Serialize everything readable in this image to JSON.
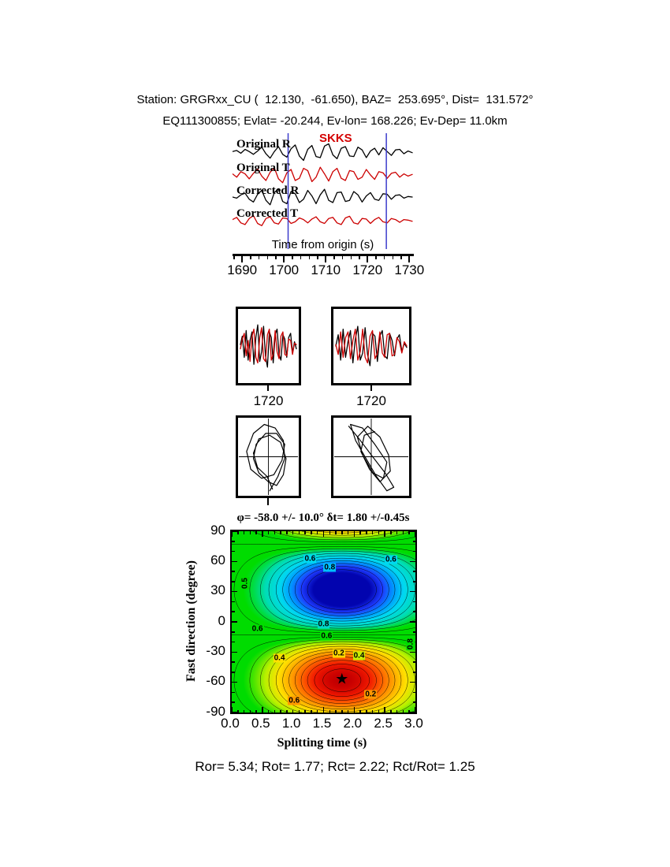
{
  "header": {
    "line1": "Station: GRGRxx_CU (  12.130,  -61.650), BAZ=  253.695°, Dist=  131.572°",
    "line2": "EQ111300855; Evlat= -20.244, Ev-lon= 168.226; Ev-Dep= 11.0km"
  },
  "footer": {
    "stats": "Ror= 5.34; Rot= 1.77; Rct= 2.22; Rct/Rot= 1.25"
  },
  "chart_data": [
    {
      "id": "seismograms",
      "type": "line",
      "phase_label": "SKKS",
      "xlabel": "Time from origin (s)",
      "xlim": [
        1687.7,
        1730.7
      ],
      "xticks": [
        1690,
        1700,
        1710,
        1720,
        1730
      ],
      "minor_tick_step": 2,
      "window_markers": [
        1701.0,
        1724.5
      ],
      "window_color": "#3c3ccc",
      "traces": [
        {
          "name": "Original R",
          "color": "#000000",
          "y": [
            0.05,
            0.15,
            -0.1,
            0.25,
            0.05,
            -0.2,
            0.1,
            0.45,
            -0.15,
            -0.55,
            0.05,
            0.5,
            -0.2,
            -0.45,
            0.3,
            0.65,
            -0.35,
            -0.75,
            0.25,
            0.6,
            -0.4,
            -0.5,
            0.55,
            0.75,
            -0.25,
            -0.6,
            0.35,
            0.5,
            -0.35,
            -0.4,
            0.45,
            0.2,
            -0.5,
            0.1,
            0.35,
            -0.25,
            0.4,
            0.05,
            -0.3,
            0.2,
            0.25,
            -0.15,
            0.1,
            -0.05
          ]
        },
        {
          "name": "Original T",
          "color": "#cc0000",
          "y": [
            0.1,
            -0.2,
            0.3,
            0.1,
            -0.35,
            0.15,
            0.55,
            -0.1,
            -0.5,
            0.25,
            0.65,
            -0.35,
            -0.7,
            0.2,
            0.5,
            -0.5,
            -0.3,
            0.6,
            0.4,
            -0.6,
            -0.2,
            0.7,
            0.1,
            -0.55,
            0.3,
            0.6,
            -0.3,
            -0.5,
            0.4,
            0.3,
            -0.4,
            -0.2,
            0.5,
            0.0,
            -0.4,
            0.3,
            0.2,
            -0.3,
            0.15,
            0.25,
            -0.2,
            0.1,
            -0.1,
            0.05
          ]
        },
        {
          "name": "Corrected R",
          "color": "#000000",
          "y": [
            0.0,
            -0.1,
            0.2,
            0.35,
            -0.2,
            -0.45,
            0.25,
            0.6,
            -0.3,
            -0.7,
            0.4,
            0.75,
            -0.4,
            -0.6,
            0.5,
            0.3,
            -0.5,
            -0.2,
            0.6,
            0.1,
            -0.6,
            0.2,
            0.7,
            -0.3,
            -0.5,
            0.4,
            0.45,
            -0.4,
            -0.3,
            0.5,
            0.2,
            -0.45,
            0.1,
            0.4,
            -0.2,
            -0.3,
            0.3,
            0.25,
            -0.2,
            0.15,
            0.2,
            -0.1,
            0.05,
            0.0
          ]
        },
        {
          "name": "Corrected T",
          "color": "#cc0000",
          "y": [
            0.1,
            0.3,
            -0.2,
            -0.35,
            0.2,
            0.45,
            -0.25,
            -0.45,
            0.2,
            0.35,
            -0.2,
            -0.3,
            0.25,
            0.2,
            -0.25,
            -0.1,
            0.25,
            0.1,
            -0.2,
            0.15,
            0.35,
            -0.1,
            -0.25,
            0.2,
            0.3,
            -0.2,
            -0.35,
            0.25,
            0.4,
            -0.2,
            -0.3,
            0.2,
            0.15,
            -0.25,
            0.1,
            0.3,
            -0.1,
            -0.2,
            0.2,
            0.1,
            -0.15,
            0.1,
            0.05,
            -0.05
          ]
        }
      ]
    },
    {
      "id": "window-left",
      "type": "line",
      "xtick": "1720",
      "traces": [
        {
          "name": "R",
          "color": "#000000",
          "y": [
            0.05,
            0.35,
            -0.4,
            0.55,
            -0.5,
            0.2,
            0.5,
            -0.65,
            0.3,
            0.75,
            -0.55,
            -0.2,
            0.7,
            -0.35,
            -0.75,
            0.5,
            0.3,
            -0.6,
            0.4,
            0.6,
            -0.3,
            -0.5,
            0.4,
            0.25,
            -0.4,
            0.3,
            0.45,
            -0.25,
            0.15,
            -0.1
          ]
        },
        {
          "name": "T",
          "color": "#cc0000",
          "y": [
            -0.1,
            0.25,
            0.45,
            -0.35,
            0.2,
            -0.55,
            0.35,
            0.6,
            -0.4,
            -0.6,
            0.3,
            0.65,
            -0.45,
            -0.55,
            0.4,
            0.6,
            -0.5,
            -0.3,
            0.55,
            -0.2,
            -0.45,
            0.35,
            0.5,
            -0.3,
            -0.35,
            0.25,
            0.2,
            -0.3,
            0.1,
            0.05
          ]
        }
      ]
    },
    {
      "id": "window-right",
      "type": "line",
      "xtick": "1720",
      "traces": [
        {
          "name": "R",
          "color": "#000000",
          "y": [
            0.0,
            0.4,
            -0.5,
            0.6,
            -0.4,
            0.15,
            0.55,
            -0.6,
            0.25,
            0.7,
            -0.5,
            -0.25,
            0.65,
            -0.3,
            -0.7,
            0.45,
            0.35,
            -0.55,
            0.35,
            0.55,
            -0.35,
            -0.45,
            0.45,
            0.2,
            -0.35,
            0.25,
            0.4,
            -0.2,
            0.1,
            -0.05
          ]
        },
        {
          "name": "T",
          "color": "#cc0000",
          "y": [
            0.05,
            -0.3,
            0.5,
            -0.4,
            0.3,
            0.5,
            -0.45,
            0.2,
            0.6,
            -0.5,
            -0.2,
            0.6,
            -0.4,
            -0.6,
            0.35,
            0.55,
            -0.45,
            -0.25,
            0.5,
            -0.25,
            -0.4,
            0.4,
            0.45,
            -0.35,
            -0.3,
            0.3,
            0.15,
            -0.25,
            0.15,
            0.0
          ]
        }
      ]
    },
    {
      "id": "particle-left",
      "type": "scatter",
      "points": [
        [
          0.05,
          -0.95
        ],
        [
          0.35,
          -0.55
        ],
        [
          0.6,
          -0.05
        ],
        [
          0.55,
          0.45
        ],
        [
          0.25,
          0.8
        ],
        [
          -0.15,
          0.9
        ],
        [
          -0.55,
          0.65
        ],
        [
          -0.8,
          0.15
        ],
        [
          -0.65,
          -0.35
        ],
        [
          -0.25,
          -0.6
        ],
        [
          0.2,
          -0.5
        ],
        [
          0.5,
          -0.1
        ],
        [
          0.6,
          0.35
        ],
        [
          0.3,
          0.65
        ],
        [
          -0.1,
          0.65
        ],
        [
          -0.45,
          0.35
        ],
        [
          -0.55,
          -0.05
        ],
        [
          -0.35,
          -0.45
        ],
        [
          0.0,
          -0.7
        ],
        [
          0.3,
          -0.8
        ],
        [
          0.55,
          -0.5
        ],
        [
          0.65,
          -0.05
        ],
        [
          0.45,
          0.4
        ],
        [
          0.05,
          0.6
        ],
        [
          -0.35,
          0.5
        ],
        [
          -0.55,
          0.1
        ],
        [
          -0.4,
          -0.3
        ],
        [
          -0.05,
          -0.55
        ],
        [
          0.15,
          -0.9
        ]
      ]
    },
    {
      "id": "particle-right",
      "type": "scatter",
      "points": [
        [
          -0.65,
          0.85
        ],
        [
          -0.35,
          0.5
        ],
        [
          0.0,
          0.05
        ],
        [
          0.4,
          -0.45
        ],
        [
          0.65,
          -0.85
        ],
        [
          0.45,
          -0.95
        ],
        [
          0.15,
          -0.55
        ],
        [
          -0.15,
          -0.05
        ],
        [
          -0.45,
          0.45
        ],
        [
          -0.6,
          0.9
        ],
        [
          -0.25,
          0.8
        ],
        [
          0.1,
          0.35
        ],
        [
          0.45,
          -0.15
        ],
        [
          0.35,
          -0.6
        ],
        [
          0.05,
          -0.45
        ],
        [
          -0.25,
          0.05
        ],
        [
          -0.4,
          0.55
        ],
        [
          -0.1,
          0.85
        ],
        [
          0.25,
          0.55
        ],
        [
          0.5,
          0.05
        ],
        [
          0.55,
          -0.4
        ],
        [
          0.25,
          -0.7
        ],
        [
          -0.05,
          -0.35
        ],
        [
          -0.3,
          0.15
        ],
        [
          -0.2,
          0.6
        ],
        [
          0.1,
          0.7
        ]
      ]
    },
    {
      "id": "error-surface",
      "type": "heatmap",
      "title": "φ= -58.0 +/- 10.0° δt= 1.80 +/-0.45s",
      "xlabel": "Splitting time (s)",
      "ylabel": "Fast direction (degree)",
      "xlim": [
        0,
        3
      ],
      "ylim": [
        -90,
        90
      ],
      "xticks": [
        "0.0",
        "0.5",
        "1.0",
        "1.5",
        "2.0",
        "2.5",
        "3.0"
      ],
      "yticks": [
        90,
        60,
        30,
        0,
        -30,
        -60,
        -90
      ],
      "best_fit": {
        "phi_deg": -58.0,
        "phi_err_deg": 10.0,
        "dt_s": 1.8,
        "dt_err_s": 0.45
      },
      "star": {
        "x": 1.8,
        "y": -58
      },
      "field_model": {
        "base": 0.56,
        "amp": 0.52,
        "x0": 1.8,
        "sx": 1.1,
        "y0": -58,
        "period_deg": 180
      },
      "contour_levels": {
        "min": 0.04,
        "max": 0.96,
        "step": 0.04
      },
      "colormap": [
        [
          0.0,
          "#900000"
        ],
        [
          0.05,
          "#c80000"
        ],
        [
          0.12,
          "#f01800"
        ],
        [
          0.2,
          "#ff6600"
        ],
        [
          0.28,
          "#ffaa00"
        ],
        [
          0.35,
          "#ffe000"
        ],
        [
          0.42,
          "#b8f000"
        ],
        [
          0.5,
          "#00dc00"
        ],
        [
          0.62,
          "#00dc00"
        ],
        [
          0.7,
          "#00dcb4"
        ],
        [
          0.78,
          "#00d8f0"
        ],
        [
          0.85,
          "#0096ff"
        ],
        [
          0.92,
          "#1e3cff"
        ],
        [
          1.0,
          "#0000aa"
        ]
      ],
      "contour_labels": [
        {
          "text": "0.6",
          "x": 1.28,
          "y": 63,
          "bg": "#00d8f0"
        },
        {
          "text": "0.8",
          "x": 1.6,
          "y": 54,
          "bg": "#00c0ff"
        },
        {
          "text": "0.6",
          "x": 2.6,
          "y": 62,
          "bg": "#00d8f0"
        },
        {
          "text": "0.5",
          "x": 0.22,
          "y": 38,
          "bg": "#00dc00",
          "rot": true
        },
        {
          "text": "0.6",
          "x": 0.42,
          "y": -7,
          "bg": "#00dc00"
        },
        {
          "text": "0.8",
          "x": 1.5,
          "y": -2,
          "bg": "#00d8c8"
        },
        {
          "text": "0.6",
          "x": 1.55,
          "y": -14,
          "bg": "#00dc00"
        },
        {
          "text": "0.4",
          "x": 0.78,
          "y": -36,
          "bg": "#ffe000"
        },
        {
          "text": "0.2",
          "x": 1.75,
          "y": -31,
          "bg": "#ffd800"
        },
        {
          "text": "0.4",
          "x": 2.08,
          "y": -34,
          "bg": "#c8f000"
        },
        {
          "text": "0.6",
          "x": 1.02,
          "y": -78,
          "bg": "#ff9800"
        },
        {
          "text": "0.2",
          "x": 2.27,
          "y": -72,
          "bg": "#ff9800"
        },
        {
          "text": "0.8",
          "x": 2.92,
          "y": -22,
          "bg": "#00dc00",
          "rot": true
        }
      ]
    }
  ]
}
